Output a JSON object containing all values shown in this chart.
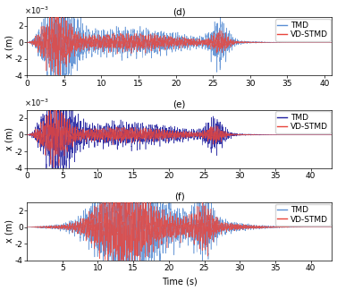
{
  "panels": [
    {
      "label": "(d)",
      "ylabel": "x (m)",
      "ylim": [
        -0.004,
        0.003
      ],
      "yticks": [
        -0.004,
        -0.002,
        0,
        0.002
      ],
      "ytick_labels": [
        "-4",
        "-2",
        "0",
        "2"
      ],
      "xlim": [
        0,
        41
      ],
      "xticks": [
        0,
        5,
        10,
        15,
        20,
        25,
        30,
        35,
        40
      ],
      "show_xlabel": false,
      "scale_label": "x10⁻³",
      "tmd_color": "#5B8FD4",
      "vdstmd_color": "#E8453C",
      "seed_tmd": 101,
      "seed_vd": 202,
      "tmd_peak1_t": 4.5,
      "tmd_peak1_a": 0.0028,
      "tmd_peak2_t": 26.0,
      "tmd_peak2_a": 0.0025,
      "vd_peak1_t": 4.0,
      "vd_peak1_a": 0.0018,
      "vd_peak2_t": 26.0,
      "vd_peak2_a": 0.0012,
      "freq_main": 5.0,
      "decay1": 0.18,
      "decay2": 0.5
    },
    {
      "label": "(e)",
      "ylabel": "x (m)",
      "ylim": [
        -0.004,
        0.003
      ],
      "yticks": [
        -0.004,
        -0.002,
        0,
        0.002
      ],
      "ytick_labels": [
        "-4",
        "-2",
        "0",
        "2"
      ],
      "xlim": [
        0,
        43
      ],
      "xticks": [
        0,
        5,
        10,
        15,
        20,
        25,
        30,
        35,
        40
      ],
      "show_xlabel": false,
      "scale_label": "x10⁻³",
      "tmd_color": "#2020A0",
      "vdstmd_color": "#E8453C",
      "seed_tmd": 303,
      "seed_vd": 404,
      "tmd_peak1_t": 4.5,
      "tmd_peak1_a": 0.0025,
      "tmd_peak2_t": 26.5,
      "tmd_peak2_a": 0.002,
      "vd_peak1_t": 4.0,
      "vd_peak1_a": 0.0015,
      "vd_peak2_t": 26.5,
      "vd_peak2_a": 0.001,
      "freq_main": 5.0,
      "decay1": 0.18,
      "decay2": 0.45
    },
    {
      "label": "(f)",
      "ylabel": "x (m)",
      "ylim": [
        -4,
        3
      ],
      "yticks": [
        -4,
        -2,
        0,
        2
      ],
      "ytick_labels": [
        "-4",
        "-2",
        "0",
        "2"
      ],
      "xlim": [
        0,
        43
      ],
      "xticks": [
        5,
        10,
        15,
        20,
        25,
        30,
        35,
        40
      ],
      "show_xlabel": true,
      "scale_label": null,
      "tmd_color": "#5B8FD4",
      "vdstmd_color": "#E8453C",
      "seed_tmd": 505,
      "seed_vd": 606,
      "tmd_peak1_t": 14.0,
      "tmd_peak1_a": 3.0,
      "tmd_peak2_t": 25.0,
      "tmd_peak2_a": 1.8,
      "vd_peak1_t": 13.5,
      "vd_peak1_a": 2.2,
      "vd_peak2_t": 25.0,
      "vd_peak2_a": 1.4,
      "freq_main": 5.0,
      "decay1": 0.05,
      "decay2": 0.4
    }
  ],
  "legend_tmd": "TMD",
  "legend_vdstmd": "VD-STMD",
  "xlabel": "Time (s)",
  "title_fontsize": 7.5,
  "label_fontsize": 7,
  "tick_fontsize": 6.5,
  "legend_fontsize": 6.5
}
